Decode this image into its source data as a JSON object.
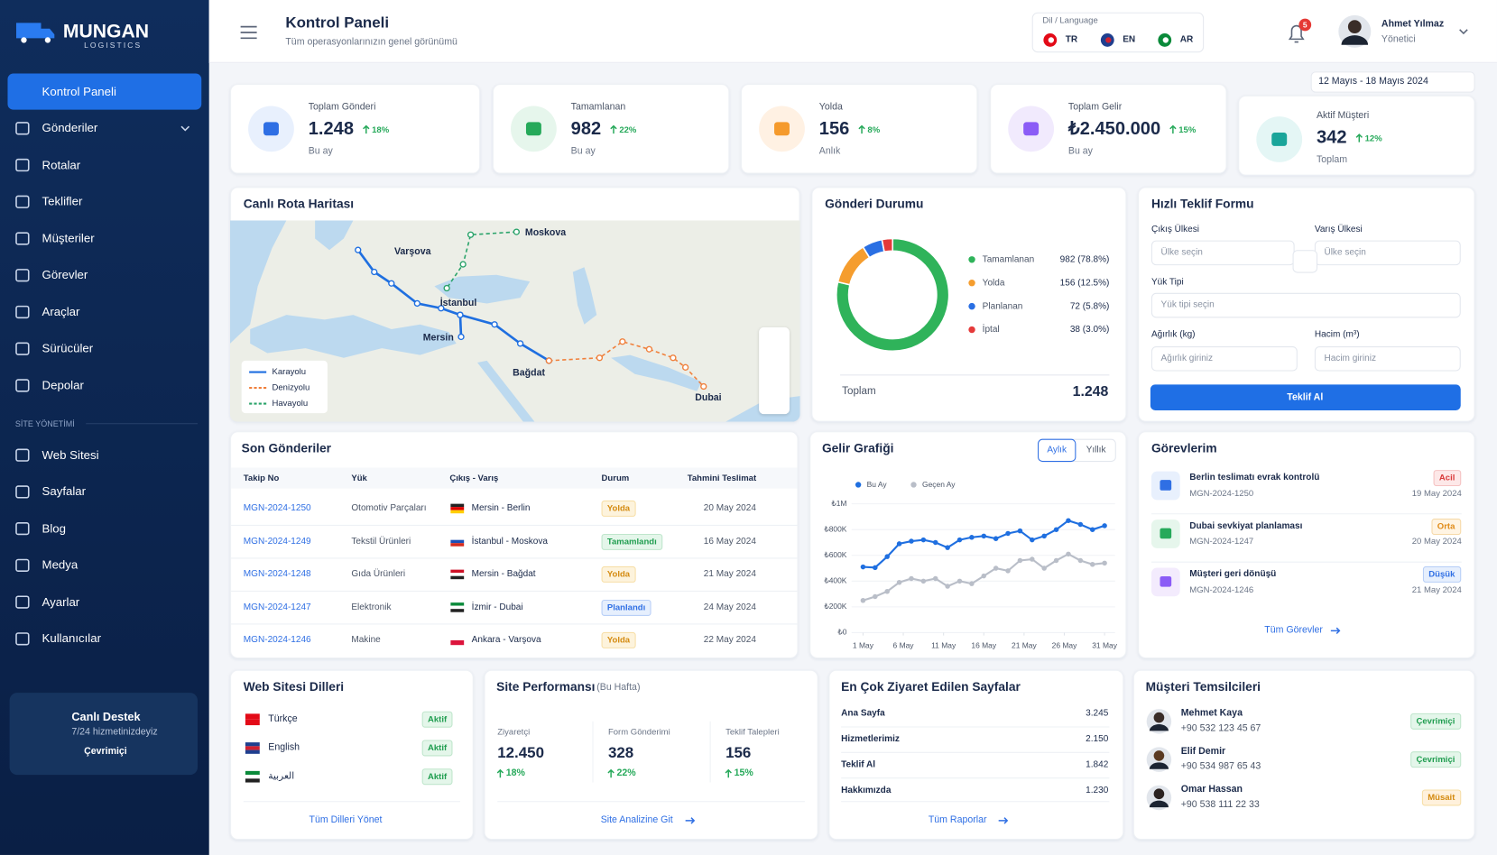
{
  "brand": {
    "name": "MUNGAN",
    "tagline": "LOGISTICS"
  },
  "sidebar": {
    "menu": [
      "Kontrol Paneli",
      "Gönderiler",
      "Rotalar",
      "Teklifler",
      "Müşteriler",
      "Görevler",
      "Araçlar",
      "Sürücüler",
      "Depolar"
    ],
    "section_title": "SİTE YÖNETİMİ",
    "site_menu": [
      "Web Sitesi",
      "Sayfalar",
      "Blog",
      "Medya",
      "Ayarlar",
      "Kullanıcılar"
    ],
    "support": {
      "title": "Canlı Destek",
      "subtitle": "7/24 hizmetinizdeyiz",
      "status": "Çevrimiçi"
    }
  },
  "header": {
    "title": "Kontrol Paneli",
    "subtitle": "Tüm operasyonlarınızın genel görünümü",
    "language_label": "Dil / Language",
    "languages": [
      "TR",
      "EN",
      "AR"
    ],
    "notification_count": 5,
    "user_name": "Ahmet Yılmaz",
    "user_role": "Yönetici"
  },
  "date_range": "12 Mayıs - 18 Mayıs 2024",
  "stats": [
    {
      "label": "Toplam Gönderi",
      "value": "1.248",
      "change": "18%",
      "note": "Bu ay"
    },
    {
      "label": "Tamamlanan",
      "value": "982",
      "change": "22%",
      "note": "Bu ay"
    },
    {
      "label": "Yolda",
      "value": "156",
      "change": "8%",
      "note": "Anlık"
    },
    {
      "label": "Toplam Gelir",
      "value": "₺2.450.000",
      "change": "15%",
      "note": "Bu ay"
    },
    {
      "label": "Aktif Müşteri",
      "value": "342",
      "change": "12%",
      "note": "Toplam"
    }
  ],
  "map": {
    "title": "Canlı Rota Haritası",
    "cities": [
      "Moskova",
      "Varşova",
      "İstanbul",
      "Mersin",
      "Bağdat",
      "Dubai"
    ],
    "legend": [
      "Karayolu",
      "Denizyolu",
      "Havayolu"
    ]
  },
  "recent_shipments": {
    "title": "Son Gönderiler",
    "columns": [
      "Takip No",
      "Yük",
      "Çıkış - Varış",
      "Durum",
      "Tahmini Teslimat"
    ],
    "rows": [
      [
        "MGN-2024-1250",
        "Otomotiv Parçaları",
        "Mersin - Berlin",
        "Yolda",
        "20 May 2024"
      ],
      [
        "MGN-2024-1249",
        "Tekstil Ürünleri",
        "İstanbul - Moskova",
        "Tamamlandı",
        "16 May 2024"
      ],
      [
        "MGN-2024-1248",
        "Gıda Ürünleri",
        "Mersin - Bağdat",
        "Yolda",
        "21 May 2024"
      ],
      [
        "MGN-2024-1247",
        "Elektronik",
        "İzmir - Dubai",
        "Planlandı",
        "24 May 2024"
      ],
      [
        "MGN-2024-1246",
        "Makine",
        "Ankara - Varşova",
        "Yolda",
        "22 May 2024"
      ]
    ]
  },
  "quote_form": {
    "title": "Hızlı Teklif Formu",
    "origin_label": "Çıkış Ülkesi",
    "origin_placeholder": "Ülke seçin",
    "destination_label": "Varış Ülkesi",
    "destination_placeholder": "Ülke seçin",
    "cargo_label": "Yük Tipi",
    "cargo_placeholder": "Yük tipi seçin",
    "weight_label": "Ağırlık (kg)",
    "weight_placeholder": "Ağırlık giriniz",
    "volume_label": "Hacim (m³)",
    "volume_placeholder": "Hacim giriniz",
    "submit": "Teklif Al"
  },
  "tasks": {
    "title": "Görevlerim",
    "items": [
      {
        "title": "Berlin teslimatı evrak kontrolü",
        "ref": "MGN-2024-1250",
        "priority": "Acil",
        "date": "19 May 2024"
      },
      {
        "title": "Dubai sevkiyat planlaması",
        "ref": "MGN-2024-1247",
        "priority": "Orta",
        "date": "20 May 2024"
      },
      {
        "title": "Müşteri geri dönüşü",
        "ref": "MGN-2024-1246",
        "priority": "Düşük",
        "date": "21 May 2024"
      }
    ],
    "link": "Tüm Görevler"
  },
  "website_languages": {
    "title": "Web Sitesi Dilleri",
    "items": [
      {
        "name": "Türkçe",
        "status": "Aktif"
      },
      {
        "name": "English",
        "status": "Aktif"
      },
      {
        "name": "العربية",
        "status": "Aktif"
      }
    ],
    "link": "Tüm Dilleri Yönet"
  },
  "site_performance": {
    "title": "Site Performansı",
    "period": "(Bu Hafta)",
    "metrics": [
      {
        "label": "Ziyaretçi",
        "value": "12.450",
        "change": "18%"
      },
      {
        "label": "Form Gönderimi",
        "value": "328",
        "change": "22%"
      },
      {
        "label": "Teklif Talepleri",
        "value": "156",
        "change": "15%"
      }
    ],
    "link": "Site Analizine Git"
  },
  "top_pages": {
    "title": "En Çok Ziyaret Edilen Sayfalar",
    "rows": [
      [
        "Ana Sayfa",
        "3.245"
      ],
      [
        "Hizmetlerimiz",
        "2.150"
      ],
      [
        "Teklif Al",
        "1.842"
      ],
      [
        "Hakkımızda",
        "1.230"
      ]
    ],
    "link": "Tüm Raporlar"
  },
  "representatives": {
    "title": "Müşteri Temsilcileri",
    "items": [
      {
        "name": "Mehmet Kaya",
        "phone": "+90 532 123 45 67",
        "status": "Çevrimiçi"
      },
      {
        "name": "Elif Demir",
        "phone": "+90 534 987 65 43",
        "status": "Çevrimiçi"
      },
      {
        "name": "Omar Hassan",
        "phone": "+90 538 111 22 33",
        "status": "Müsait"
      }
    ]
  },
  "chart_data": [
    {
      "type": "pie",
      "title": "Gönderi Durumu",
      "categories": [
        "Tamamlanan",
        "Yolda",
        "Planlanan",
        "İptal"
      ],
      "values": [
        982,
        156,
        72,
        38
      ],
      "value_labels": [
        "982 (78.8%)",
        "156 (12.5%)",
        "72 (5.8%)",
        "38 (3.0%)"
      ],
      "colors": [
        "#2fb35a",
        "#f59d2e",
        "#2a6fe3",
        "#e53a3a"
      ],
      "total_label": "Toplam",
      "total": "1.248"
    },
    {
      "type": "line",
      "title": "Gelir Grafiği",
      "tabs": [
        "Aylık",
        "Yıllık"
      ],
      "x": [
        1,
        2.5,
        4,
        5.5,
        7,
        8.5,
        10,
        11.5,
        13,
        14.5,
        16,
        17.5,
        19,
        20.5,
        22,
        23.5,
        25,
        26.5,
        28,
        29.5,
        31
      ],
      "series": [
        {
          "name": "Bu Ay",
          "color": "#1f6fe0",
          "values": [
            510,
            505,
            590,
            690,
            710,
            720,
            700,
            660,
            720,
            740,
            750,
            730,
            770,
            790,
            720,
            750,
            800,
            870,
            840,
            800,
            830
          ]
        },
        {
          "name": "Geçen Ay",
          "color": "#b9bec8",
          "values": [
            250,
            280,
            320,
            390,
            420,
            400,
            420,
            360,
            400,
            380,
            440,
            500,
            480,
            560,
            570,
            500,
            560,
            610,
            560,
            530,
            540
          ]
        }
      ],
      "xlim": [
        1,
        31
      ],
      "xticks": [
        {
          "value": 1,
          "label": "1 May"
        },
        {
          "value": 6,
          "label": "6 May"
        },
        {
          "value": 11,
          "label": "11 May"
        },
        {
          "value": 16,
          "label": "16 May"
        },
        {
          "value": 21,
          "label": "21 May"
        },
        {
          "value": 26,
          "label": "26 May"
        },
        {
          "value": 31,
          "label": "31 May"
        }
      ],
      "ylim": [
        0,
        1000
      ],
      "yticks": [
        {
          "value": 0,
          "label": "₺0"
        },
        {
          "value": 200,
          "label": "₺200K"
        },
        {
          "value": 400,
          "label": "₺400K"
        },
        {
          "value": 600,
          "label": "₺600K"
        },
        {
          "value": 800,
          "label": "₺800K"
        },
        {
          "value": 1000,
          "label": "₺1M"
        }
      ],
      "grid": true
    }
  ]
}
